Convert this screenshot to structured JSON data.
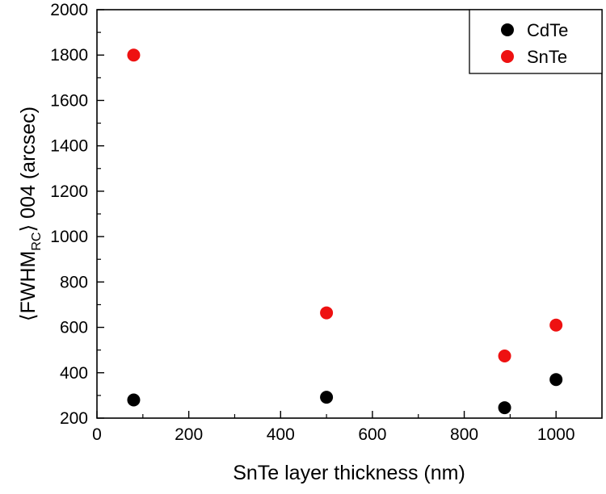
{
  "chart_data": {
    "type": "scatter",
    "xlabel": "SnTe layer thickness (nm)",
    "ylabel": {
      "prefix": "⟨FWHM",
      "sub": "RC",
      "suffix": "⟩ 004 (arcsec)"
    },
    "xlim": [
      0,
      1100
    ],
    "ylim": [
      200,
      2000
    ],
    "xticks": [
      0,
      200,
      400,
      600,
      800,
      1000
    ],
    "yticks": [
      200,
      400,
      600,
      800,
      1000,
      1200,
      1400,
      1600,
      1800,
      2000
    ],
    "grid": false,
    "legend_position": "top-right",
    "series": [
      {
        "name": "CdTe",
        "color": "#000000",
        "points": [
          {
            "x": 80,
            "y": 280
          },
          {
            "x": 500,
            "y": 292
          },
          {
            "x": 888,
            "y": 246
          },
          {
            "x": 1000,
            "y": 370
          }
        ]
      },
      {
        "name": "SnTe",
        "color": "#ee1111",
        "points": [
          {
            "x": 80,
            "y": 1800
          },
          {
            "x": 500,
            "y": 664
          },
          {
            "x": 888,
            "y": 474
          },
          {
            "x": 1000,
            "y": 610
          }
        ]
      }
    ]
  }
}
